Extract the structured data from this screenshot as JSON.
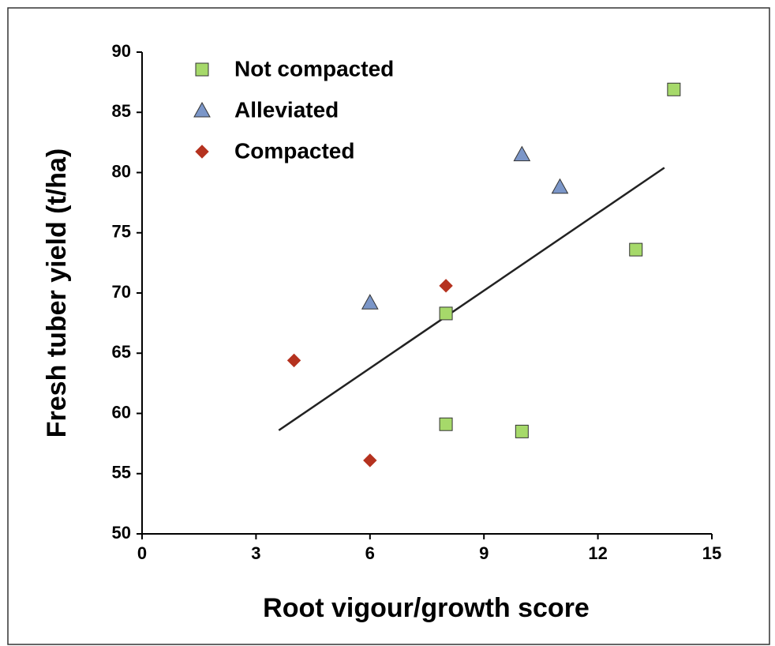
{
  "chart_data": {
    "type": "scatter",
    "x_label": "Root vigour/growth score",
    "y_label": "Fresh tuber yield (t/ha)",
    "xlim": [
      0,
      15
    ],
    "ylim": [
      50,
      90
    ],
    "xticks": [
      0,
      3,
      6,
      9,
      12,
      15
    ],
    "yticks": [
      50,
      55,
      60,
      65,
      70,
      75,
      80,
      85,
      90
    ],
    "grid": false,
    "legend": "upper left",
    "series": [
      {
        "name": "Not compacted",
        "color": "#a6d96a",
        "marker": "square",
        "x": [
          8,
          8,
          10,
          13,
          14
        ],
        "values": [
          68.3,
          59.1,
          58.5,
          73.6,
          86.9
        ]
      },
      {
        "name": "Alleviated",
        "color": "#7b96c8",
        "marker": "triangle",
        "x": [
          6,
          10,
          11
        ],
        "values": [
          69.2,
          81.5,
          78.8
        ]
      },
      {
        "name": "Compacted",
        "color": "#b5321f",
        "marker": "diamond",
        "x": [
          4,
          6,
          8
        ],
        "values": [
          64.4,
          56.1,
          70.6
        ]
      }
    ],
    "trend_line": {
      "color": "#222222",
      "x": [
        3.6,
        13.75
      ],
      "values": [
        58.6,
        80.4
      ]
    }
  }
}
